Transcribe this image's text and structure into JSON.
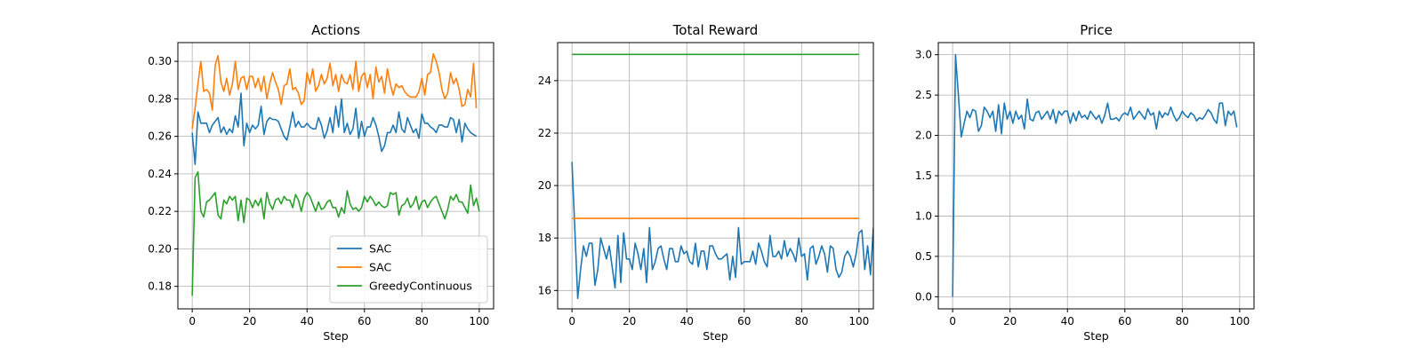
{
  "colors": {
    "c0": "#1f77b4",
    "c1": "#ff7f0e",
    "c2": "#2ca02c"
  },
  "chart_data": [
    {
      "type": "line",
      "title": "Actions",
      "xlabel": "Step",
      "ylabel": "",
      "xlim": [
        -5,
        105
      ],
      "ylim": [
        0.168,
        0.31
      ],
      "xticks": [
        0,
        20,
        40,
        60,
        80,
        100
      ],
      "xtick_labels": [
        "0",
        "20",
        "40",
        "60",
        "80",
        "100"
      ],
      "yticks": [
        0.18,
        0.2,
        0.22,
        0.24,
        0.26,
        0.28,
        0.3
      ],
      "ytick_labels": [
        "0.18",
        "0.20",
        "0.22",
        "0.24",
        "0.26",
        "0.28",
        "0.30"
      ],
      "grid": true,
      "legend": "lower-right",
      "series": [
        {
          "name": "SAC",
          "color": "#1f77b4",
          "x_start": 0,
          "x_step": 1,
          "values": [
            0.262,
            0.245,
            0.273,
            0.267,
            0.267,
            0.267,
            0.262,
            0.266,
            0.268,
            0.27,
            0.262,
            0.265,
            0.261,
            0.264,
            0.262,
            0.271,
            0.265,
            0.283,
            0.255,
            0.267,
            0.262,
            0.266,
            0.264,
            0.266,
            0.276,
            0.261,
            0.268,
            0.27,
            0.269,
            0.269,
            0.268,
            0.264,
            0.26,
            0.258,
            0.265,
            0.273,
            0.265,
            0.268,
            0.265,
            0.265,
            0.267,
            0.265,
            0.264,
            0.264,
            0.27,
            0.266,
            0.259,
            0.263,
            0.27,
            0.262,
            0.276,
            0.265,
            0.28,
            0.262,
            0.267,
            0.261,
            0.264,
            0.275,
            0.259,
            0.268,
            0.26,
            0.265,
            0.265,
            0.27,
            0.266,
            0.26,
            0.252,
            0.255,
            0.262,
            0.262,
            0.266,
            0.262,
            0.273,
            0.264,
            0.262,
            0.27,
            0.266,
            0.262,
            0.264,
            0.259,
            0.272,
            0.267,
            0.267,
            0.265,
            0.264,
            0.262,
            0.266,
            0.266,
            0.265,
            0.265,
            0.27,
            0.269,
            0.262,
            0.269,
            0.257,
            0.267,
            0.264,
            0.262,
            0.261,
            0.26
          ]
        },
        {
          "name": "SAC",
          "color": "#ff7f0e",
          "x_start": 0,
          "x_step": 1,
          "values": [
            0.264,
            0.275,
            0.288,
            0.3,
            0.284,
            0.285,
            0.283,
            0.274,
            0.298,
            0.303,
            0.289,
            0.284,
            0.291,
            0.282,
            0.288,
            0.3,
            0.285,
            0.291,
            0.292,
            0.285,
            0.292,
            0.292,
            0.286,
            0.291,
            0.284,
            0.292,
            0.28,
            0.288,
            0.294,
            0.289,
            0.285,
            0.277,
            0.287,
            0.288,
            0.296,
            0.285,
            0.286,
            0.283,
            0.277,
            0.279,
            0.294,
            0.288,
            0.296,
            0.284,
            0.287,
            0.293,
            0.288,
            0.291,
            0.299,
            0.287,
            0.293,
            0.284,
            0.293,
            0.289,
            0.288,
            0.293,
            0.285,
            0.3,
            0.284,
            0.292,
            0.294,
            0.286,
            0.293,
            0.28,
            0.297,
            0.289,
            0.292,
            0.283,
            0.296,
            0.288,
            0.282,
            0.288,
            0.286,
            0.287,
            0.284,
            0.282,
            0.281,
            0.281,
            0.281,
            0.284,
            0.291,
            0.282,
            0.293,
            0.294,
            0.304,
            0.3,
            0.294,
            0.285,
            0.28,
            0.283,
            0.294,
            0.288,
            0.291,
            0.285,
            0.276,
            0.277,
            0.285,
            0.281,
            0.299,
            0.275
          ]
        },
        {
          "name": "GreedyContinuous",
          "color": "#2ca02c",
          "x_start": 0,
          "x_step": 1,
          "values": [
            0.175,
            0.238,
            0.241,
            0.22,
            0.217,
            0.225,
            0.226,
            0.228,
            0.23,
            0.218,
            0.216,
            0.226,
            0.224,
            0.228,
            0.226,
            0.228,
            0.215,
            0.226,
            0.214,
            0.227,
            0.226,
            0.222,
            0.226,
            0.223,
            0.227,
            0.216,
            0.23,
            0.224,
            0.221,
            0.226,
            0.227,
            0.224,
            0.228,
            0.226,
            0.226,
            0.222,
            0.229,
            0.226,
            0.22,
            0.227,
            0.23,
            0.228,
            0.224,
            0.22,
            0.225,
            0.221,
            0.222,
            0.225,
            0.226,
            0.222,
            0.222,
            0.217,
            0.222,
            0.219,
            0.231,
            0.224,
            0.221,
            0.222,
            0.22,
            0.222,
            0.228,
            0.225,
            0.228,
            0.226,
            0.223,
            0.225,
            0.223,
            0.222,
            0.223,
            0.23,
            0.229,
            0.23,
            0.218,
            0.223,
            0.224,
            0.227,
            0.222,
            0.224,
            0.228,
            0.221,
            0.225,
            0.226,
            0.222,
            0.225,
            0.227,
            0.228,
            0.224,
            0.22,
            0.216,
            0.221,
            0.228,
            0.226,
            0.229,
            0.225,
            0.225,
            0.222,
            0.219,
            0.234,
            0.223,
            0.227,
            0.22
          ]
        }
      ]
    },
    {
      "type": "line",
      "title": "Total Reward",
      "xlabel": "Step",
      "ylabel": "",
      "xlim": [
        -5,
        105
      ],
      "ylim": [
        15.3,
        25.45
      ],
      "xticks": [
        0,
        20,
        40,
        60,
        80,
        100
      ],
      "xtick_labels": [
        "0",
        "20",
        "40",
        "60",
        "80",
        "100"
      ],
      "yticks": [
        16,
        18,
        20,
        22,
        24
      ],
      "ytick_labels": [
        "16",
        "18",
        "20",
        "22",
        "24"
      ],
      "grid": true,
      "series": [
        {
          "name": "",
          "color": "#1f77b4",
          "x_start": 0,
          "x_step": 1,
          "values": [
            20.9,
            18.3,
            15.7,
            16.8,
            17.7,
            17.3,
            17.8,
            17.8,
            16.2,
            16.8,
            18,
            17.6,
            17.2,
            17.7,
            16.9,
            16.1,
            18.1,
            16.3,
            18.2,
            17.2,
            17.2,
            16.8,
            17.8,
            17.4,
            16.8,
            17.6,
            16.3,
            18.4,
            16.8,
            17.1,
            17.6,
            17.7,
            17.2,
            16.8,
            17.6,
            17.6,
            17.1,
            17.1,
            17.7,
            17.4,
            17.5,
            17.1,
            17,
            17.8,
            16.9,
            17.5,
            17.5,
            16.8,
            17.7,
            17.7,
            17.4,
            17.2,
            17.2,
            17.3,
            17.4,
            16.4,
            17.3,
            16.5,
            18.4,
            17,
            17.1,
            17.1,
            17.1,
            17.5,
            17,
            17.8,
            17.5,
            17.1,
            16.9,
            18.1,
            17.3,
            17.3,
            17.5,
            17.2,
            17.9,
            17.3,
            17.6,
            17.4,
            17.1,
            18,
            17.3,
            17.4,
            16.4,
            17.6,
            17.7,
            17,
            17.3,
            17.7,
            17.4,
            16.7,
            17.7,
            17.6,
            16.8,
            16.5,
            16.7,
            17.3,
            17.5,
            17.3,
            16.9,
            17.4,
            18.2,
            18.3,
            16.8,
            17.7,
            16.6,
            18.4
          ]
        },
        {
          "name": "",
          "color": "#ff7f0e",
          "x_start": 0,
          "x_step": 100,
          "values": [
            18.75,
            18.75
          ]
        },
        {
          "name": "",
          "color": "#2ca02c",
          "x_start": 0,
          "x_step": 100,
          "values": [
            25.0,
            25.0
          ]
        }
      ]
    },
    {
      "type": "line",
      "title": "Price",
      "xlabel": "Step",
      "ylabel": "",
      "xlim": [
        -5,
        105
      ],
      "ylim": [
        -0.15,
        3.15
      ],
      "xticks": [
        0,
        20,
        40,
        60,
        80,
        100
      ],
      "xtick_labels": [
        "0",
        "20",
        "40",
        "60",
        "80",
        "100"
      ],
      "yticks": [
        0.0,
        0.5,
        1.0,
        1.5,
        2.0,
        2.5,
        3.0
      ],
      "ytick_labels": [
        "0.0",
        "0.5",
        "1.0",
        "1.5",
        "2.0",
        "2.5",
        "3.0"
      ],
      "grid": true,
      "series": [
        {
          "name": "",
          "color": "#1f77b4",
          "x_start": 0,
          "x_step": 1,
          "values": [
            0,
            3,
            2.5,
            1.98,
            2.15,
            2.3,
            2.22,
            2.32,
            2.3,
            2.05,
            2.12,
            2.35,
            2.3,
            2.22,
            2.3,
            2.05,
            2.38,
            2.02,
            2.4,
            2.2,
            2.3,
            2.15,
            2.3,
            2.2,
            2.25,
            2.08,
            2.45,
            2.2,
            2.18,
            2.28,
            2.3,
            2.2,
            2.25,
            2.3,
            2.2,
            2.32,
            2.15,
            2.3,
            2.25,
            2.3,
            2.3,
            2.15,
            2.28,
            2.18,
            2.3,
            2.22,
            2.25,
            2.2,
            2.3,
            2.25,
            2.2,
            2.25,
            2.15,
            2.25,
            2.4,
            2.2,
            2.2,
            2.22,
            2.18,
            2.25,
            2.28,
            2.25,
            2.35,
            2.2,
            2.25,
            2.3,
            2.25,
            2.2,
            2.33,
            2.25,
            2.28,
            2.08,
            2.3,
            2.22,
            2.28,
            2.25,
            2.35,
            2.25,
            2.18,
            2.22,
            2.3,
            2.25,
            2.22,
            2.28,
            2.25,
            2.18,
            2.22,
            2.2,
            2.25,
            2.32,
            2.28,
            2.2,
            2.15,
            2.4,
            2.4,
            2.12,
            2.3,
            2.25,
            2.3,
            2.1
          ]
        }
      ]
    }
  ]
}
